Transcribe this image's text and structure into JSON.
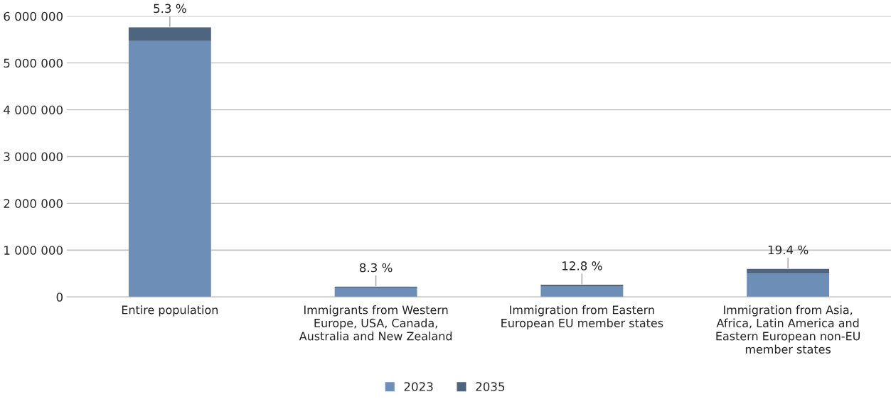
{
  "chart_data": {
    "type": "bar",
    "stacked": true,
    "categories": [
      "Entire population",
      "Immigrants from Western Europe, USA, Canada, Australia and New Zealand",
      "Immigration from Eastern European EU member states",
      "Immigration from Asia, Africa, Latin America and Eastern European non-EU member states"
    ],
    "series": [
      {
        "name": "2023",
        "color": "#6d8fb7",
        "values": [
          5470000,
          200000,
          230000,
          500000
        ]
      },
      {
        "name": "2035",
        "color": "#4e6580",
        "values": [
          290000,
          20000,
          30000,
          100000
        ]
      }
    ],
    "annotations": [
      {
        "text": "5.3 %",
        "x": "Entire population",
        "y": 5760000
      },
      {
        "text": "8.3 %",
        "x": "Immigrants from Western Europe, USA, Canada, Australia and New Zealand",
        "y": 220000
      },
      {
        "text": "12.8 %",
        "x": "Immigration from Eastern European EU member states",
        "y": 260000
      },
      {
        "text": "19.4 %",
        "x": "Immigration from Asia, Africa, Latin America and Eastern European non-EU member states",
        "y": 600000
      }
    ],
    "ylim": [
      0,
      6000000
    ],
    "yticks": [
      0,
      {
        "value": 1000000,
        "label": "1 000 000"
      },
      {
        "value": 2000000,
        "label": "2 000 000"
      },
      {
        "value": 3000000,
        "label": "3 000 000"
      },
      {
        "value": 4000000,
        "label": "4 000 000"
      },
      {
        "value": 5000000,
        "label": "5 000 000"
      },
      {
        "value": 6000000,
        "label": "6 000 000"
      }
    ],
    "grid": "y",
    "legend": "bottom"
  }
}
